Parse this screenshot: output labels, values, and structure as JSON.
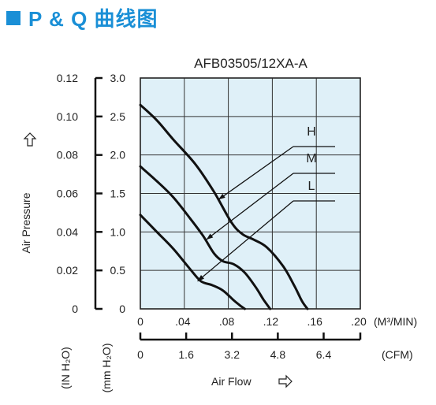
{
  "header": {
    "title": "P & Q 曲线图"
  },
  "colors": {
    "accent": "#1a8fd6",
    "plot_bg": "#dff0f8",
    "curve": "#111111"
  },
  "icons": {
    "axis_arrow": "outline-arrow-icon"
  },
  "chart_data": {
    "type": "line",
    "title": "AFB03505/12XA-A",
    "xlabel": "Air Flow",
    "ylabel": "Air Pressure",
    "x_unit_primary": "(M³/MIN)",
    "x_unit_secondary": "(CFM)",
    "y_unit_inner": "(mm H₂O)",
    "y_unit_outer": "(IN H₂O)",
    "xlim": [
      0,
      0.2
    ],
    "ylim": [
      0,
      3.0
    ],
    "x_ticks": [
      ".04",
      ".08",
      ".12",
      ".16",
      ".20"
    ],
    "x_tick_zero": "0",
    "x_ticks_cfm": [
      "0",
      "1.6",
      "3.2",
      "4.8",
      "6.4"
    ],
    "y_ticks_mm": [
      "0",
      "0.5",
      "1.0",
      "1.5",
      "2.0",
      "2.5",
      "3.0"
    ],
    "y_ticks_in": [
      "0",
      "0.02",
      "0.04",
      "0.06",
      "0.08",
      "0.10",
      "0.12"
    ],
    "grid": true,
    "series": [
      {
        "name": "H",
        "points": [
          [
            0.0,
            2.65
          ],
          [
            0.015,
            2.45
          ],
          [
            0.03,
            2.2
          ],
          [
            0.05,
            1.88
          ],
          [
            0.067,
            1.52
          ],
          [
            0.083,
            1.12
          ],
          [
            0.093,
            0.97
          ],
          [
            0.103,
            0.9
          ],
          [
            0.115,
            0.8
          ],
          [
            0.13,
            0.55
          ],
          [
            0.14,
            0.3
          ],
          [
            0.147,
            0.1
          ],
          [
            0.152,
            0.0
          ]
        ]
      },
      {
        "name": "M",
        "points": [
          [
            0.0,
            1.85
          ],
          [
            0.015,
            1.66
          ],
          [
            0.03,
            1.45
          ],
          [
            0.045,
            1.18
          ],
          [
            0.057,
            0.95
          ],
          [
            0.067,
            0.72
          ],
          [
            0.075,
            0.62
          ],
          [
            0.085,
            0.58
          ],
          [
            0.095,
            0.47
          ],
          [
            0.105,
            0.28
          ],
          [
            0.112,
            0.12
          ],
          [
            0.118,
            0.0
          ]
        ]
      },
      {
        "name": "L",
        "points": [
          [
            0.0,
            1.22
          ],
          [
            0.015,
            1.0
          ],
          [
            0.03,
            0.78
          ],
          [
            0.045,
            0.52
          ],
          [
            0.055,
            0.36
          ],
          [
            0.065,
            0.31
          ],
          [
            0.075,
            0.24
          ],
          [
            0.085,
            0.11
          ],
          [
            0.092,
            0.03
          ],
          [
            0.095,
            0.0
          ]
        ]
      }
    ]
  }
}
